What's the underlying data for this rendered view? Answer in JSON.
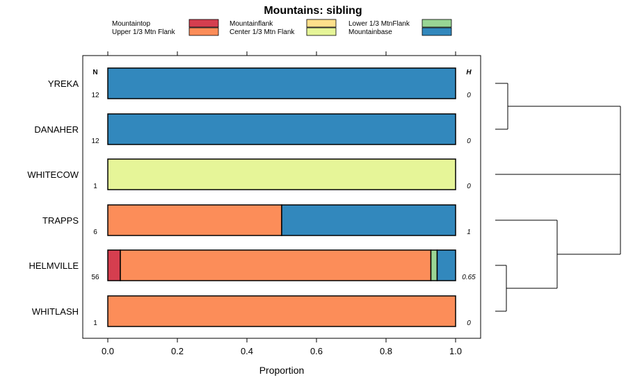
{
  "chart_data": {
    "type": "bar",
    "orientation": "horizontal",
    "stacked": true,
    "title": "Mountains: sibling",
    "xlabel": "Proportion",
    "xlim": [
      -0.07,
      1.07
    ],
    "xticks": [
      0.0,
      0.2,
      0.4,
      0.6,
      0.8,
      1.0
    ],
    "xtick_labels": [
      "0.0",
      "0.2",
      "0.4",
      "0.6",
      "0.8",
      "1.0"
    ],
    "n_header": "N",
    "h_header": "H",
    "legend_position": "top",
    "categories": [
      {
        "name": "Mountaintop",
        "color": "#D53E4F"
      },
      {
        "name": "Upper 1/3 Mtn Flank",
        "color": "#FC8D59"
      },
      {
        "name": "Mountainflank",
        "color": "#FEE08B"
      },
      {
        "name": "Center 1/3 Mtn Flank",
        "color": "#E6F598"
      },
      {
        "name": "Lower 1/3 MtnFlank",
        "color": "#99D594"
      },
      {
        "name": "Mountainbase",
        "color": "#3288BD"
      }
    ],
    "rows": [
      {
        "label": "YREKA",
        "n": "12",
        "h": "0",
        "values": [
          0,
          0,
          0,
          0,
          0,
          1
        ]
      },
      {
        "label": "DANAHER",
        "n": "12",
        "h": "0",
        "values": [
          0,
          0,
          0,
          0,
          0,
          1
        ]
      },
      {
        "label": "WHITECOW",
        "n": "1",
        "h": "0",
        "values": [
          0,
          0,
          0,
          1,
          0,
          0
        ]
      },
      {
        "label": "TRAPPS",
        "n": "6",
        "h": "1",
        "values": [
          0,
          0.5,
          0,
          0,
          0,
          0.5
        ]
      },
      {
        "label": "HELMVILLE",
        "n": "56",
        "h": "0.65",
        "values": [
          0.036,
          0.893,
          0,
          0,
          0.018,
          0.053
        ]
      },
      {
        "label": "WHITLASH",
        "n": "1",
        "h": "0",
        "values": [
          0,
          1,
          0,
          0,
          0,
          0
        ]
      }
    ],
    "dendrogram": {
      "merges": [
        {
          "left": "YREKA",
          "right": "DANAHER"
        },
        {
          "left": "HELMVILLE",
          "right": "WHITLASH"
        },
        {
          "left": "TRAPPS",
          "right": "HELMVILLE+WHITLASH"
        },
        {
          "left": "YREKA+DANAHER",
          "right": "WHITECOW+TRAPPS+HELMVILLE+WHITLASH"
        }
      ]
    }
  }
}
